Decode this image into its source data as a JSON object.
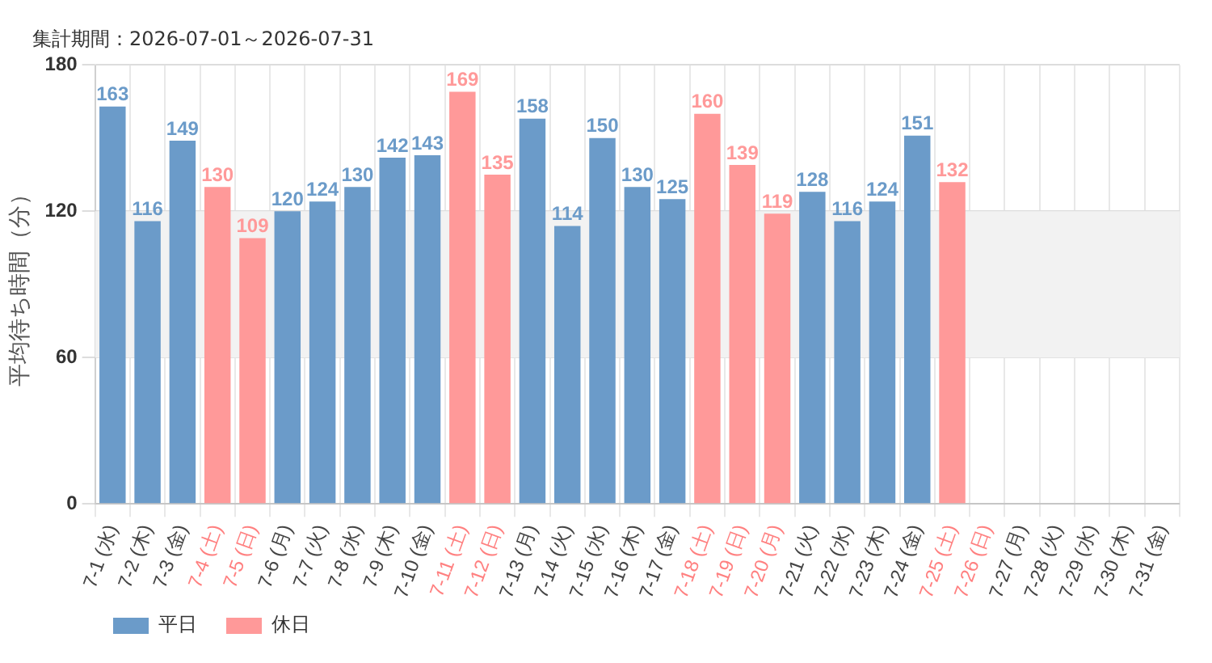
{
  "chart_data": {
    "type": "bar",
    "title": "集計期間：2026-07-01～2026-07-31",
    "ylabel": "平均待ち時間（分）",
    "categories": [
      "7-1 (水)",
      "7-2 (木)",
      "7-3 (金)",
      "7-4 (土)",
      "7-5 (日)",
      "7-6 (月)",
      "7-7 (火)",
      "7-8 (水)",
      "7-9 (木)",
      "7-10 (金)",
      "7-11 (土)",
      "7-12 (日)",
      "7-13 (月)",
      "7-14 (火)",
      "7-15 (水)",
      "7-16 (木)",
      "7-17 (金)",
      "7-18 (土)",
      "7-19 (日)",
      "7-20 (月)",
      "7-21 (火)",
      "7-22 (水)",
      "7-23 (木)",
      "7-24 (金)",
      "7-25 (土)",
      "7-26 (日)",
      "7-27 (月)",
      "7-28 (火)",
      "7-29 (水)",
      "7-30 (木)",
      "7-31 (金)"
    ],
    "colors": [
      "#444444",
      "#444444",
      "#444444",
      "#ff8080",
      "#ff8080",
      "#444444",
      "#444444",
      "#444444",
      "#444444",
      "#444444",
      "#ff8080",
      "#ff8080",
      "#444444",
      "#444444",
      "#444444",
      "#444444",
      "#444444",
      "#ff8080",
      "#ff8080",
      "#ff8080",
      "#444444",
      "#444444",
      "#444444",
      "#444444",
      "#ff8080",
      "#ff8080",
      "#444444",
      "#444444",
      "#444444",
      "#444444",
      "#444444"
    ],
    "series": [
      {
        "name": "平日",
        "color": "#6b9bc9",
        "values": [
          163,
          116,
          149,
          null,
          null,
          120,
          124,
          130,
          142,
          143,
          null,
          null,
          158,
          114,
          150,
          130,
          125,
          null,
          null,
          null,
          128,
          116,
          124,
          151,
          null,
          null,
          null,
          null,
          null,
          null,
          null
        ]
      },
      {
        "name": "休日",
        "color": "#ff9999",
        "values": [
          null,
          null,
          null,
          130,
          109,
          null,
          null,
          null,
          null,
          null,
          169,
          135,
          null,
          null,
          null,
          null,
          null,
          160,
          139,
          119,
          null,
          null,
          null,
          null,
          132,
          null,
          null,
          null,
          null,
          null,
          null
        ]
      }
    ],
    "stacked": true,
    "ylim": [
      0,
      180
    ],
    "yticks": [
      0,
      60,
      120,
      180
    ],
    "grid": true,
    "legend": "bottom left",
    "data_labels": true,
    "bands": [
      {
        "axis": "y",
        "from": 60,
        "to": 120,
        "color": "#f2f2f2"
      }
    ]
  }
}
